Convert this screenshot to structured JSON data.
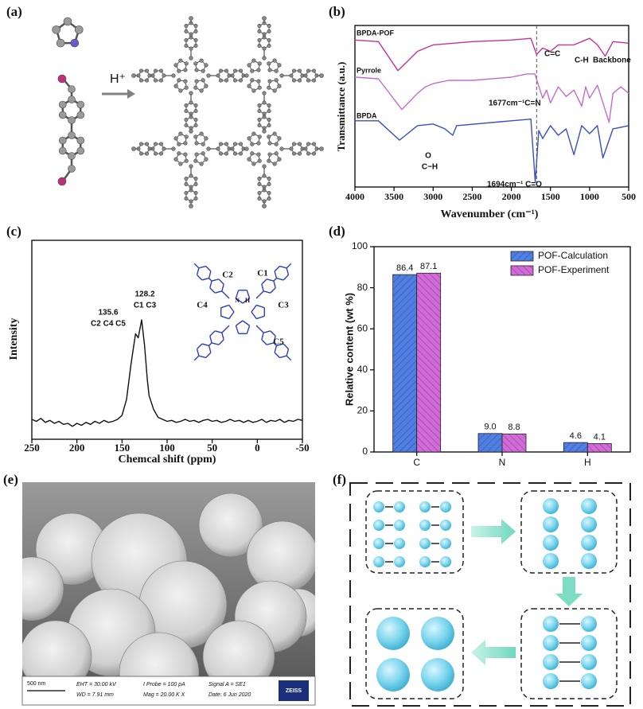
{
  "panel_labels": [
    "(a)",
    "(b)",
    "(c)",
    "(d)",
    "(e)",
    "(f)"
  ],
  "figure_a": {
    "reagent": "H⁺"
  },
  "chart_data": [
    {
      "type": "line",
      "xlabel": "Wavenumber (cm⁻¹)",
      "ylabel": "Transmittance (a.u.)",
      "xlim": [
        4000,
        500
      ],
      "xticks": [
        4000,
        3500,
        3000,
        2500,
        2000,
        1500,
        1000,
        500
      ],
      "ylim": [
        0,
        100
      ],
      "reference_x": 1677,
      "annotations": [
        "C=C",
        "C-H",
        "Backbone",
        "1677cm⁻¹C=N",
        "1694cm⁻¹ C=O",
        "O",
        "C−H"
      ],
      "series": [
        {
          "name": "BPDA-POF",
          "color": "#c2349a",
          "x": [
            4000,
            3700,
            3450,
            3200,
            3000,
            2500,
            2000,
            1750,
            1677,
            1600,
            1500,
            1400,
            1200,
            1000,
            900,
            800,
            700,
            500
          ],
          "values": [
            91,
            90,
            72,
            84,
            88,
            90,
            91,
            92,
            82,
            86,
            84,
            88,
            88,
            92,
            88,
            81,
            90,
            89
          ]
        },
        {
          "name": "Pyrrole",
          "color": "#c56ad0",
          "x": [
            4000,
            3700,
            3400,
            3200,
            3100,
            3000,
            2800,
            2500,
            2000,
            1800,
            1700,
            1600,
            1550,
            1500,
            1400,
            1300,
            1200,
            1100,
            1050,
            1000,
            900,
            750,
            700,
            600,
            500
          ],
          "values": [
            68,
            67,
            48,
            58,
            62,
            64,
            66,
            66,
            68,
            70,
            70,
            55,
            60,
            52,
            62,
            56,
            60,
            50,
            62,
            55,
            63,
            40,
            58,
            62,
            58
          ]
        },
        {
          "name": "BPDA",
          "color": "#3a4fc0",
          "x": [
            4000,
            3700,
            3430,
            3200,
            3000,
            2850,
            2750,
            2700,
            2000,
            1750,
            1694,
            1650,
            1600,
            1500,
            1400,
            1300,
            1200,
            1100,
            1000,
            900,
            830,
            700,
            500
          ],
          "values": [
            41,
            41,
            29,
            38,
            39,
            36,
            32,
            38,
            41,
            42,
            3,
            35,
            30,
            38,
            32,
            36,
            20,
            38,
            33,
            38,
            18,
            36,
            38
          ]
        }
      ]
    },
    {
      "type": "line",
      "xlabel": "Chemcal shift (ppm)",
      "ylabel": "Intensity",
      "xlim": [
        250,
        -50
      ],
      "xticks": [
        250,
        200,
        150,
        100,
        50,
        0,
        -50
      ],
      "ylim": [
        0,
        100
      ],
      "color": "#111111",
      "annotations": [
        "128.2",
        "C1 C3",
        "135.6",
        "C2 C4 C5"
      ],
      "molecule_labels": [
        "C1",
        "C2",
        "C3",
        "C4",
        "C5",
        "N",
        "H"
      ],
      "x": [
        250,
        245,
        240,
        235,
        230,
        225,
        220,
        215,
        210,
        205,
        200,
        195,
        190,
        185,
        180,
        175,
        170,
        165,
        160,
        155,
        150,
        145,
        140,
        135,
        132,
        128.2,
        125,
        122,
        120,
        115,
        110,
        105,
        100,
        95,
        90,
        85,
        80,
        75,
        70,
        65,
        60,
        55,
        50,
        45,
        40,
        35,
        30,
        25,
        20,
        15,
        10,
        5,
        0,
        -5,
        -10,
        -15,
        -20,
        -25,
        -30,
        -35,
        -40,
        -45,
        -50
      ],
      "values": [
        10,
        9,
        10.5,
        8.5,
        9.5,
        8,
        9,
        7.5,
        8,
        6.5,
        8,
        7,
        8.5,
        7.5,
        9,
        8,
        9.5,
        8.5,
        9,
        10,
        12,
        20,
        38,
        53,
        51,
        60,
        47,
        30,
        22,
        15,
        11,
        10,
        9,
        9.5,
        8.5,
        9,
        10,
        9,
        9.5,
        8.5,
        9.5,
        10,
        9,
        9.5,
        8.5,
        9,
        10,
        9,
        9.5,
        8.5,
        9.5,
        8.5,
        9,
        10,
        8.5,
        9.5,
        9,
        10,
        8.5,
        9.5,
        9,
        10,
        9.5
      ]
    },
    {
      "type": "bar",
      "ylabel": "Relative content (wt %)",
      "categories": [
        "C",
        "N",
        "H"
      ],
      "ylim": [
        0,
        100
      ],
      "yticks": [
        0,
        20,
        40,
        60,
        80,
        100
      ],
      "legend": "top-right",
      "series": [
        {
          "name": "POF-Calculation",
          "color": "#4f7fe3",
          "values": [
            86.4,
            9.0,
            4.6
          ],
          "value_labels": [
            "86.4",
            "9.0",
            "4.6"
          ]
        },
        {
          "name": "POF-Experiment",
          "color": "#d46ad8",
          "values": [
            87.1,
            8.8,
            4.1
          ],
          "value_labels": [
            "87.1",
            "8.8",
            "4.1"
          ]
        }
      ]
    }
  ],
  "sem_image": {
    "scale_bar": "500 nm",
    "info": [
      "EHT = 30.00 kV",
      "WD = 7.91 mm",
      "I Probe =  100 pA",
      "Mag =  20.00 K X",
      "Signal A = SE1",
      "Date: 6 Jun 2020"
    ],
    "brand": "ZEISS"
  }
}
